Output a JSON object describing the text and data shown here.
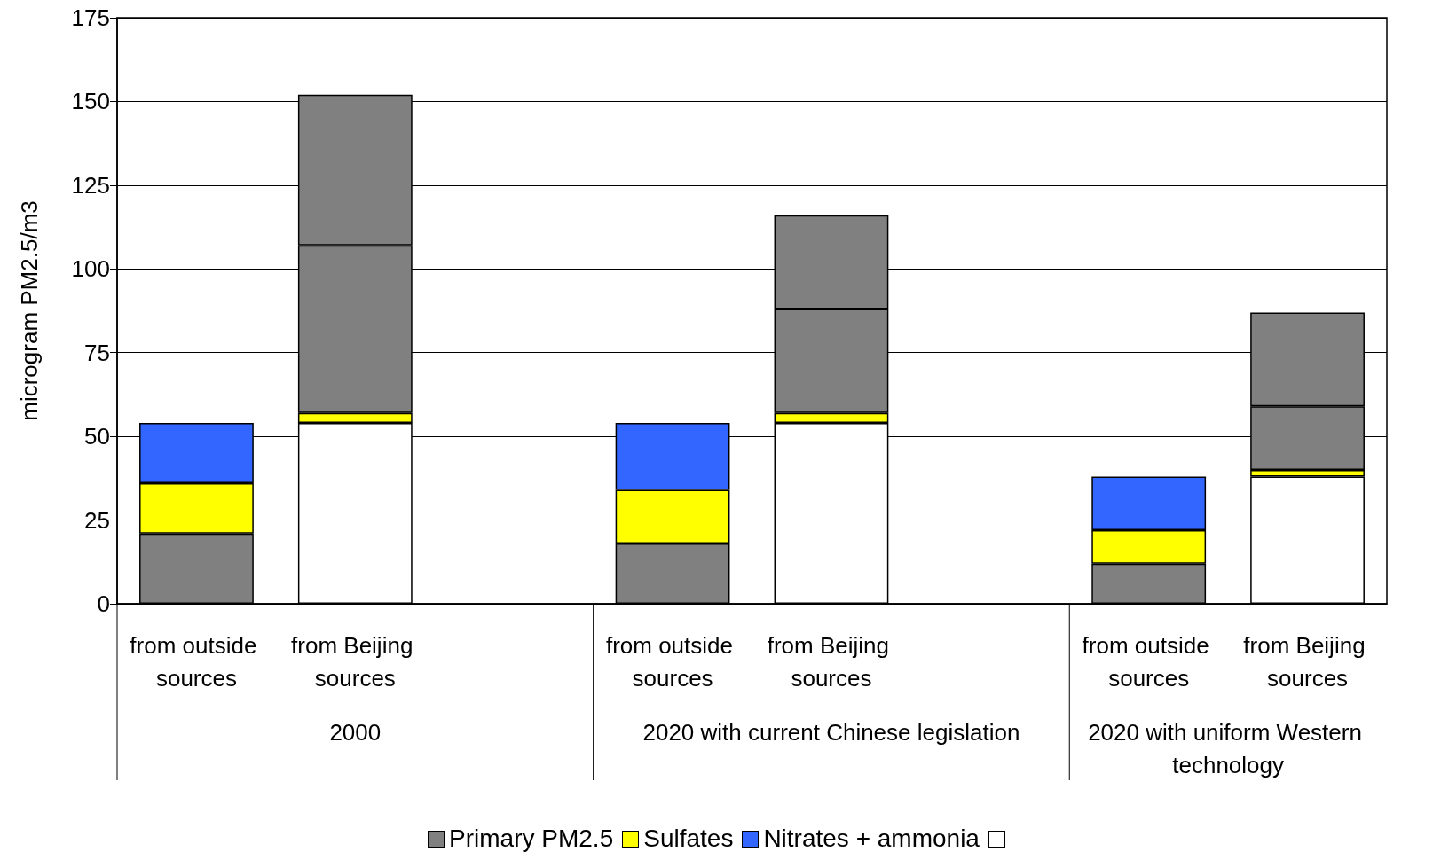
{
  "chart_data": {
    "type": "bar",
    "stacked": true,
    "ylabel": "microgram PM2.5/m3",
    "categories": [
      "from outside sources",
      "from Beijing sources",
      null,
      "from outside sources",
      "from Beijing sources",
      null,
      "from outside sources",
      "from Beijing sources"
    ],
    "series": [
      {
        "color": "#ffffff",
        "values": [
          0,
          54,
          null,
          0,
          54,
          null,
          0,
          38
        ]
      },
      {
        "name": "Primary PM2.5",
        "color": "#808080",
        "values": [
          21,
          0,
          null,
          18,
          0,
          null,
          12,
          0
        ]
      },
      {
        "name": "Sulfates",
        "color": "#ffff00",
        "values": [
          15,
          3,
          null,
          16,
          3,
          null,
          10,
          2
        ]
      },
      {
        "name": "Nitrates + ammonia",
        "color": "#3366ff",
        "values": [
          18,
          0,
          null,
          20,
          0,
          null,
          16,
          0
        ]
      },
      {
        "color": "#808080",
        "values": [
          0,
          50,
          null,
          0,
          31,
          null,
          0,
          19
        ]
      },
      {
        "color": "#808080",
        "values": [
          0,
          45,
          null,
          0,
          28,
          null,
          0,
          28
        ]
      }
    ],
    "annotations": [
      "2000",
      "2020 with current Chinese legislation",
      "2020 with uniform Western technology"
    ],
    "ylim": [
      0,
      175
    ],
    "yticks": [
      0,
      25,
      50,
      75,
      100,
      125,
      150,
      175
    ],
    "grid": "y",
    "legend": "bottom"
  }
}
